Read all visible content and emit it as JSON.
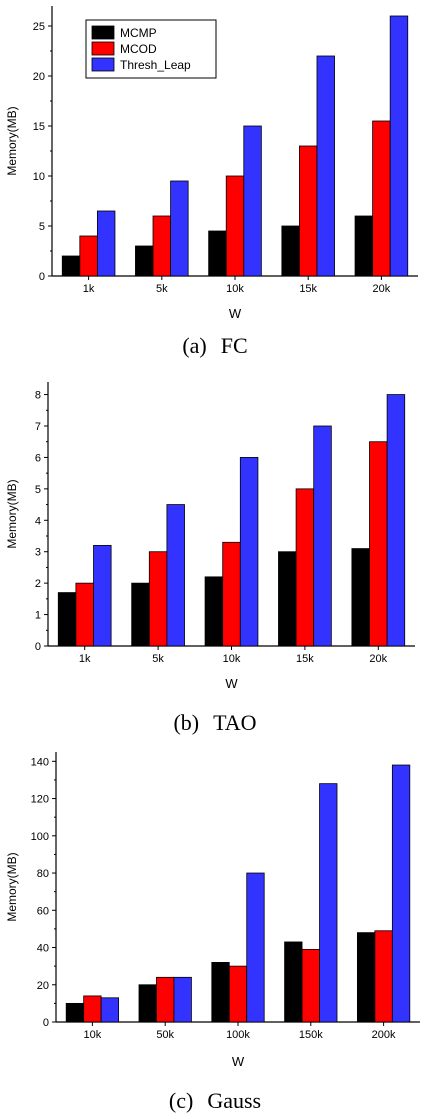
{
  "chart_data": [
    {
      "type": "bar",
      "caption_label": "(a)",
      "caption_name": "FC",
      "categories": [
        "1k",
        "5k",
        "10k",
        "15k",
        "20k"
      ],
      "series": [
        {
          "name": "MCMP",
          "values": [
            2,
            3,
            4.5,
            5,
            6
          ]
        },
        {
          "name": "MCOD",
          "values": [
            4,
            6,
            10,
            13,
            15.5
          ]
        },
        {
          "name": "Thresh_Leap",
          "values": [
            6.5,
            9.5,
            15,
            22,
            26
          ]
        }
      ],
      "xlabel": "W",
      "ylabel": "Memory(MB)",
      "ylim": [
        0,
        27
      ],
      "yticks": [
        0,
        5,
        10,
        15,
        20,
        25
      ],
      "legend": "top-left"
    },
    {
      "type": "bar",
      "caption_label": "(b)",
      "caption_name": "TAO",
      "categories": [
        "1k",
        "5k",
        "10k",
        "15k",
        "20k"
      ],
      "series": [
        {
          "name": "MCMP",
          "values": [
            1.7,
            2,
            2.2,
            3,
            3.1
          ]
        },
        {
          "name": "MCOD",
          "values": [
            2,
            3,
            3.3,
            5,
            6.5
          ]
        },
        {
          "name": "Thresh_Leap",
          "values": [
            3.2,
            4.5,
            6,
            7,
            8
          ]
        }
      ],
      "xlabel": "W",
      "ylabel": "Memory(MB)",
      "ylim": [
        0,
        8.4
      ],
      "yticks": [
        0,
        1,
        2,
        3,
        4,
        5,
        6,
        7,
        8
      ]
    },
    {
      "type": "bar",
      "caption_label": "(c)",
      "caption_name": "Gauss",
      "categories": [
        "10k",
        "50k",
        "100k",
        "150k",
        "200k"
      ],
      "series": [
        {
          "name": "MCMP",
          "values": [
            10,
            20,
            32,
            43,
            48
          ]
        },
        {
          "name": "MCOD",
          "values": [
            14,
            24,
            30,
            39,
            49
          ]
        },
        {
          "name": "Thresh_Leap",
          "values": [
            13,
            24,
            80,
            128,
            138
          ]
        }
      ],
      "xlabel": "W",
      "ylabel": "Memory(MB)",
      "ylim": [
        0,
        145
      ],
      "yticks": [
        0,
        20,
        40,
        60,
        80,
        100,
        120,
        140
      ]
    }
  ],
  "colors": {
    "MCMP": "#000000",
    "MCOD": "#ff0000",
    "Thresh_Leap": "#3333ff"
  }
}
